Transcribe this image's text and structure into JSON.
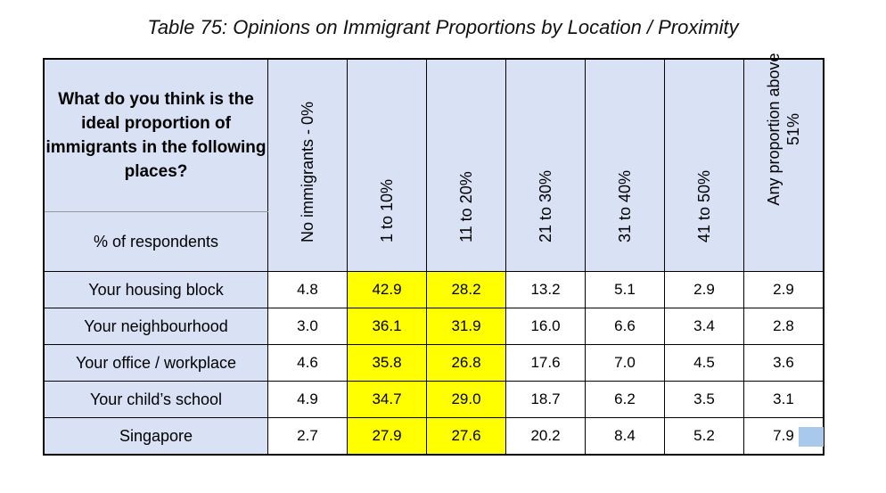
{
  "caption": "Table 75: Opinions on Immigrant Proportions by Location / Proximity",
  "header": {
    "question": "What do you think is the ideal proportion of immigrants in the following places?",
    "unit": "% of respondents",
    "columns": [
      "No immigrants - 0%",
      "1 to 10%",
      "11 to 20%",
      "21 to 30%",
      "31 to 40%",
      "41 to 50%",
      "Any proportion above 51%"
    ]
  },
  "rows": [
    {
      "label": "Your housing block",
      "values": [
        "4.8",
        "42.9",
        "28.2",
        "13.2",
        "5.1",
        "2.9",
        "2.9"
      ]
    },
    {
      "label": "Your neighbourhood",
      "values": [
        "3.0",
        "36.1",
        "31.9",
        "16.0",
        "6.6",
        "3.4",
        "2.8"
      ]
    },
    {
      "label": "Your office / workplace",
      "values": [
        "4.6",
        "35.8",
        "26.8",
        "17.6",
        "7.0",
        "4.5",
        "3.6"
      ]
    },
    {
      "label": "Your child’s school",
      "values": [
        "4.9",
        "34.7",
        "29.0",
        "18.7",
        "6.2",
        "3.5",
        "3.1"
      ]
    },
    {
      "label": "Singapore",
      "values": [
        "2.7",
        "27.9",
        "27.6",
        "20.2",
        "8.4",
        "5.2",
        "7.9"
      ]
    }
  ],
  "colors": {
    "header_fill": "#d9e1f5",
    "highlight": "#ffff00",
    "selection": "#a8c8ec"
  }
}
